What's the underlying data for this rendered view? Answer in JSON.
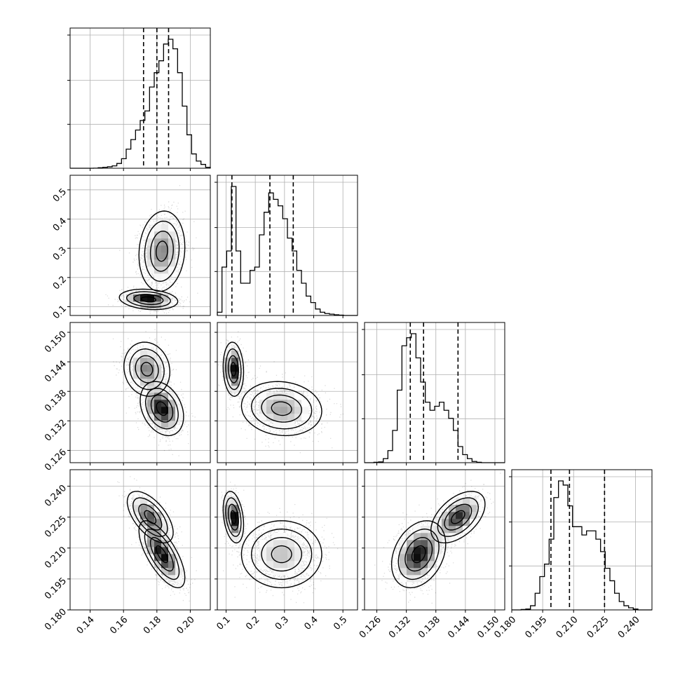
{
  "chart_data": {
    "type": "corner",
    "grid": true,
    "parameters": [
      {
        "ticks": [
          0.14,
          0.16,
          0.18,
          0.2
        ],
        "tick_labels": [
          "0.14",
          "0.16",
          "0.18",
          "0.20"
        ],
        "range": [
          0.128,
          0.212
        ]
      },
      {
        "ticks": [
          0.1,
          0.2,
          0.3,
          0.4,
          0.5
        ],
        "tick_labels": [
          "0.1",
          "0.2",
          "0.3",
          "0.4",
          "0.5"
        ],
        "range": [
          0.07,
          0.55
        ]
      },
      {
        "ticks": [
          0.126,
          0.132,
          0.138,
          0.144,
          0.15
        ],
        "tick_labels": [
          "0.126",
          "0.132",
          "0.138",
          "0.144",
          "0.150"
        ],
        "range": [
          0.1235,
          0.152
        ]
      },
      {
        "ticks": [
          0.18,
          0.195,
          0.21,
          0.225,
          0.24
        ],
        "tick_labels": [
          "0.180",
          "0.195",
          "0.210",
          "0.225",
          "0.240"
        ],
        "range": [
          0.18,
          0.248
        ]
      }
    ],
    "quantiles": [
      [
        0.172,
        0.18,
        0.187
      ],
      [
        0.12,
        0.25,
        0.33
      ],
      [
        0.1328,
        0.1355,
        0.1425
      ],
      [
        0.199,
        0.208,
        0.225
      ]
    ],
    "histograms": [
      {
        "edges_range": [
          0.128,
          0.212
        ],
        "bins": 30,
        "counts": [
          0,
          0,
          0,
          0,
          0,
          0.2,
          1,
          2,
          3,
          5,
          10,
          20,
          40,
          60,
          80,
          100,
          120,
          170,
          200,
          225,
          260,
          270,
          250,
          200,
          130,
          70,
          30,
          15,
          8,
          2
        ]
      },
      {
        "edges_range": [
          0.07,
          0.55
        ],
        "bins": 30,
        "counts": [
          10,
          150,
          200,
          400,
          200,
          100,
          100,
          140,
          150,
          250,
          320,
          380,
          360,
          340,
          300,
          240,
          200,
          140,
          100,
          60,
          40,
          20,
          10,
          6,
          4,
          2,
          1,
          0,
          0,
          0
        ]
      },
      {
        "edges_range": [
          0.1235,
          0.152
        ],
        "bins": 30,
        "counts": [
          0,
          0,
          1,
          2,
          10,
          30,
          80,
          180,
          290,
          310,
          320,
          260,
          200,
          150,
          130,
          140,
          150,
          130,
          110,
          80,
          40,
          20,
          10,
          3,
          1,
          0,
          0,
          0,
          0,
          0
        ]
      },
      {
        "edges_range": [
          0.18,
          0.248
        ],
        "bins": 30,
        "counts": [
          0,
          0,
          1,
          2,
          10,
          40,
          80,
          110,
          170,
          270,
          310,
          300,
          250,
          200,
          200,
          180,
          190,
          190,
          170,
          140,
          100,
          70,
          40,
          20,
          10,
          5,
          2,
          0,
          0,
          0
        ]
      }
    ],
    "modes": [
      {
        "col": 0,
        "row": 1,
        "components": [
          {
            "x": 0.183,
            "y": 0.29,
            "sx": 0.0055,
            "sy": 0.055,
            "rho": 0.1,
            "w": 0.62
          },
          {
            "x": 0.175,
            "y": 0.125,
            "sx": 0.007,
            "sy": 0.014,
            "rho": -0.2,
            "w": 0.38
          }
        ]
      },
      {
        "col": 0,
        "row": 2,
        "components": [
          {
            "x": 0.183,
            "y": 0.1345,
            "sx": 0.0052,
            "sy": 0.0022,
            "rho": -0.3,
            "w": 0.62
          },
          {
            "x": 0.174,
            "y": 0.1425,
            "sx": 0.0055,
            "sy": 0.0022,
            "rho": -0.1,
            "w": 0.38
          }
        ]
      },
      {
        "col": 1,
        "row": 2,
        "components": [
          {
            "x": 0.29,
            "y": 0.1345,
            "sx": 0.055,
            "sy": 0.0022,
            "rho": -0.1,
            "w": 0.62
          },
          {
            "x": 0.125,
            "y": 0.1425,
            "sx": 0.014,
            "sy": 0.0022,
            "rho": -0.1,
            "w": 0.38
          }
        ]
      },
      {
        "col": 0,
        "row": 3,
        "components": [
          {
            "x": 0.183,
            "y": 0.207,
            "sx": 0.0055,
            "sy": 0.0065,
            "rho": -0.7,
            "w": 0.62
          },
          {
            "x": 0.176,
            "y": 0.225,
            "sx": 0.0055,
            "sy": 0.005,
            "rho": -0.6,
            "w": 0.38
          }
        ]
      },
      {
        "col": 1,
        "row": 3,
        "components": [
          {
            "x": 0.29,
            "y": 0.207,
            "sx": 0.055,
            "sy": 0.0065,
            "rho": 0.0,
            "w": 0.62
          },
          {
            "x": 0.125,
            "y": 0.225,
            "sx": 0.014,
            "sy": 0.005,
            "rho": -0.3,
            "w": 0.38
          }
        ]
      },
      {
        "col": 2,
        "row": 3,
        "components": [
          {
            "x": 0.1345,
            "y": 0.207,
            "sx": 0.0022,
            "sy": 0.0065,
            "rho": 0.3,
            "w": 0.62
          },
          {
            "x": 0.1425,
            "y": 0.225,
            "sx": 0.0022,
            "sy": 0.005,
            "rho": 0.5,
            "w": 0.38
          }
        ]
      }
    ],
    "contour_levels_sigma": [
      0.5,
      1.0,
      1.5,
      2.0
    ]
  }
}
